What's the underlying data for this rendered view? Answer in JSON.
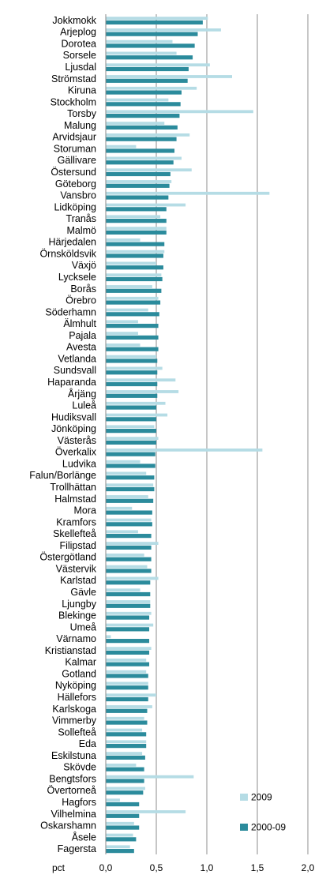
{
  "chart_data": {
    "type": "bar",
    "orientation": "horizontal",
    "xlabel": "pct",
    "xlim": [
      0,
      2.0
    ],
    "x_ticks": [
      "0,0",
      "0,5",
      "1,0",
      "1,5",
      "2,0"
    ],
    "grid": "vertical",
    "legend_position": "bottom-right",
    "colors": {
      "2009": "#b5dce5",
      "2000-09": "#2b8b9c"
    },
    "categories": [
      "Jokkmokk",
      "Arjeplog",
      "Dorotea",
      "Sorsele",
      "Ljusdal",
      "Strömstad",
      "Kiruna",
      "Stockholm",
      "Torsby",
      "Malung",
      "Arvidsjaur",
      "Storuman",
      "Gällivare",
      "Östersund",
      "Göteborg",
      "Vansbro",
      "Lidköping",
      "Tranås",
      "Malmö",
      "Härjedalen",
      "Örnsköldsvik",
      "Växjö",
      "Lycksele",
      "Borås",
      "Örebro",
      "Söderhamn",
      "Älmhult",
      "Pajala",
      "Avesta",
      "Vetlanda",
      "Sundsvall",
      "Haparanda",
      "Årjäng",
      "Luleå",
      "Hudiksvall",
      "Jönköping",
      "Västerås",
      "Överkalix",
      "Ludvika",
      "Falun/Borlänge",
      "Trollhättan",
      "Halmstad",
      "Mora",
      "Kramfors",
      "Skellefteå",
      "Filipstad",
      "Östergötland",
      "Västervik",
      "Karlstad",
      "Gävle",
      "Ljungby",
      "Blekinge",
      "Umeå",
      "Värnamo",
      "Kristianstad",
      "Kalmar",
      "Gotland",
      "Nyköping",
      "Hällefors",
      "Karlskoga",
      "Vimmerby",
      "Sollefteå",
      "Eda",
      "Eskilstuna",
      "Skövde",
      "Bengtsfors",
      "Övertorneå",
      "Hagfors",
      "Vilhelmina",
      "Oskarshamn",
      "Åsele",
      "Fagersta"
    ],
    "series": [
      {
        "name": "2009",
        "values": [
          1.01,
          1.14,
          0.66,
          0.7,
          1.03,
          1.25,
          0.9,
          0.62,
          1.46,
          0.58,
          0.83,
          0.3,
          0.75,
          0.85,
          0.65,
          1.62,
          0.79,
          0.54,
          0.6,
          0.34,
          0.58,
          0.5,
          0.55,
          0.46,
          0.52,
          0.42,
          0.32,
          0.32,
          0.34,
          0.5,
          0.56,
          0.69,
          0.72,
          0.59,
          0.61,
          0.48,
          0.52,
          1.55,
          0.34,
          0.4,
          0.47,
          0.42,
          0.26,
          0.45,
          0.32,
          0.52,
          0.38,
          0.41,
          0.52,
          0.34,
          0.44,
          0.45,
          0.47,
          0.05,
          0.45,
          0.4,
          0.4,
          0.42,
          0.5,
          0.46,
          0.38,
          0.36,
          0.4,
          0.36,
          0.3,
          0.87,
          0.39,
          0.14,
          0.79,
          0.28,
          0.27,
          0.24
        ]
      },
      {
        "name": "2000-09",
        "values": [
          0.96,
          0.91,
          0.88,
          0.86,
          0.82,
          0.81,
          0.75,
          0.74,
          0.73,
          0.71,
          0.7,
          0.68,
          0.67,
          0.64,
          0.63,
          0.62,
          0.6,
          0.6,
          0.6,
          0.58,
          0.57,
          0.57,
          0.56,
          0.55,
          0.54,
          0.53,
          0.52,
          0.52,
          0.52,
          0.51,
          0.51,
          0.51,
          0.51,
          0.5,
          0.5,
          0.5,
          0.5,
          0.49,
          0.49,
          0.48,
          0.48,
          0.47,
          0.46,
          0.46,
          0.45,
          0.45,
          0.45,
          0.45,
          0.44,
          0.44,
          0.44,
          0.43,
          0.43,
          0.43,
          0.43,
          0.43,
          0.42,
          0.42,
          0.42,
          0.41,
          0.41,
          0.4,
          0.4,
          0.39,
          0.38,
          0.38,
          0.37,
          0.33,
          0.33,
          0.33,
          0.3,
          0.28
        ]
      }
    ]
  }
}
